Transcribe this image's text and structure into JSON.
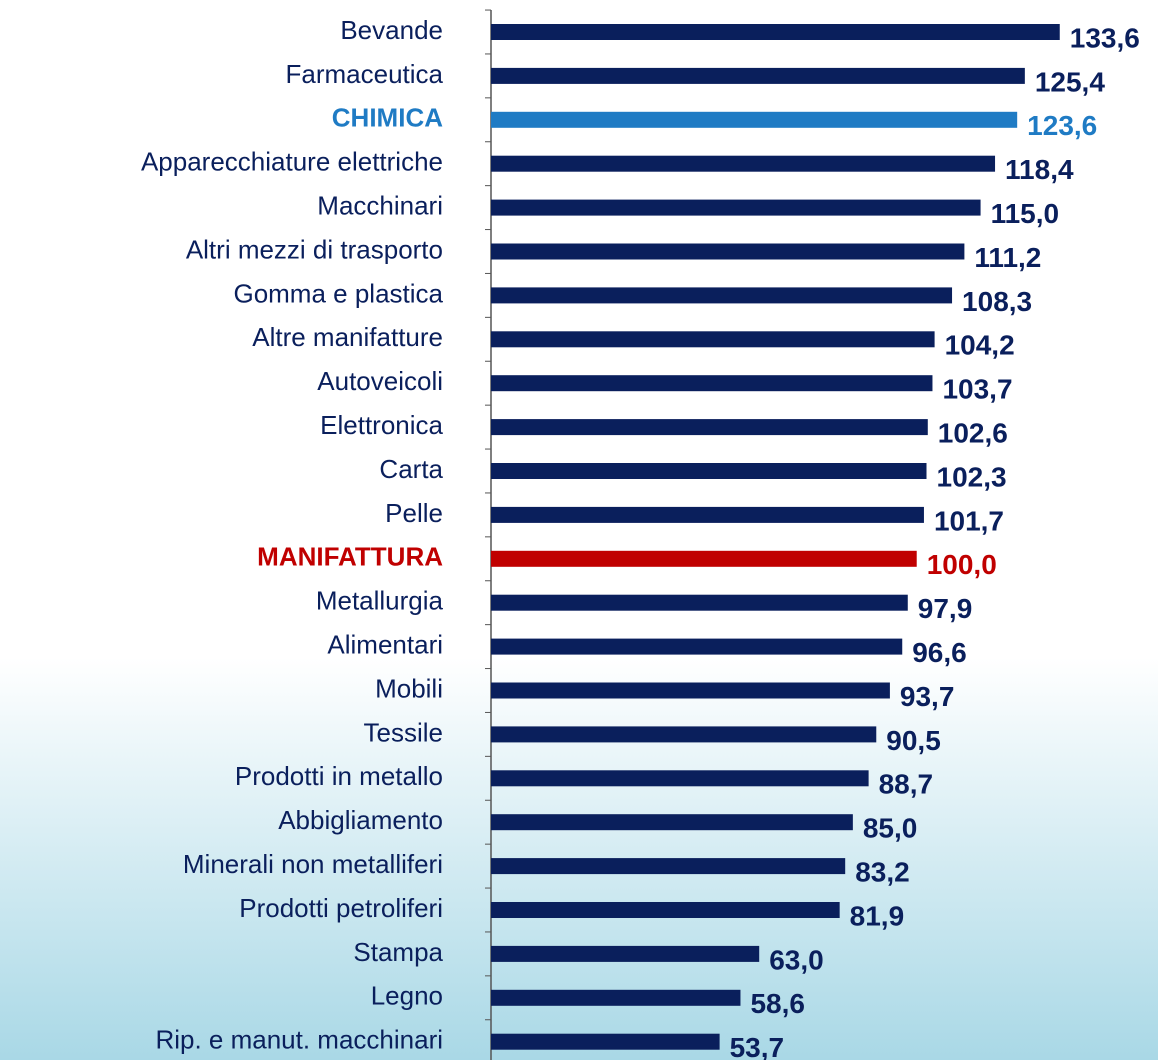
{
  "chart_data": {
    "type": "bar",
    "orientation": "horizontal",
    "categories": [
      "Bevande",
      "Farmaceutica",
      "CHIMICA",
      "Apparecchiature elettriche",
      "Macchinari",
      "Altri mezzi di trasporto",
      "Gomma e plastica",
      "Altre manifatture",
      "Autoveicoli",
      "Elettronica",
      "Carta",
      "Pelle",
      "MANIFATTURA",
      "Metallurgia",
      "Alimentari",
      "Mobili",
      "Tessile",
      "Prodotti in metallo",
      "Abbigliamento",
      "Minerali non metalliferi",
      "Prodotti petroliferi",
      "Stampa",
      "Legno",
      "Rip. e manut. macchinari"
    ],
    "values": [
      133.6,
      125.4,
      123.6,
      118.4,
      115.0,
      111.2,
      108.3,
      104.2,
      103.7,
      102.6,
      102.3,
      101.7,
      100.0,
      97.9,
      96.6,
      93.7,
      90.5,
      88.7,
      85.0,
      83.2,
      81.9,
      63.0,
      58.6,
      53.7
    ],
    "value_labels": [
      "133,6",
      "125,4",
      "123,6",
      "118,4",
      "115,0",
      "111,2",
      "108,3",
      "104,2",
      "103,7",
      "102,6",
      "102,3",
      "101,7",
      "100,0",
      "97,9",
      "96,6",
      "93,7",
      "90,5",
      "88,7",
      "85,0",
      "83,2",
      "81,9",
      "63,0",
      "58,6",
      "53,7"
    ],
    "colors": [
      "#0a1f5c",
      "#0a1f5c",
      "#1f7bc4",
      "#0a1f5c",
      "#0a1f5c",
      "#0a1f5c",
      "#0a1f5c",
      "#0a1f5c",
      "#0a1f5c",
      "#0a1f5c",
      "#0a1f5c",
      "#0a1f5c",
      "#c00000",
      "#0a1f5c",
      "#0a1f5c",
      "#0a1f5c",
      "#0a1f5c",
      "#0a1f5c",
      "#0a1f5c",
      "#0a1f5c",
      "#0a1f5c",
      "#0a1f5c",
      "#0a1f5c",
      "#0a1f5c"
    ],
    "highlight": [
      false,
      false,
      true,
      false,
      false,
      false,
      false,
      false,
      false,
      false,
      false,
      false,
      true,
      false,
      false,
      false,
      false,
      false,
      false,
      false,
      false,
      false,
      false,
      false
    ],
    "xlim": [
      0,
      140
    ]
  }
}
